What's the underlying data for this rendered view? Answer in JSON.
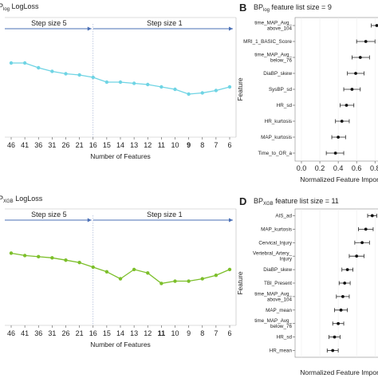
{
  "chart_data": [
    {
      "panel": "A",
      "type": "line",
      "title_main": "P",
      "title_sub": "log",
      "title_rest": " LogLoss",
      "xlabel": "Number of Features",
      "categories": [
        "46",
        "41",
        "36",
        "31",
        "26",
        "21",
        "16",
        "15",
        "14",
        "13",
        "12",
        "11",
        "10",
        "9",
        "8",
        "7",
        "6"
      ],
      "highlight": "9",
      "series": [
        {
          "values": [
            0.62,
            0.62,
            0.58,
            0.55,
            0.53,
            0.52,
            0.5,
            0.46,
            0.46,
            0.45,
            0.44,
            0.42,
            0.4,
            0.36,
            0.37,
            0.39,
            0.42
          ]
        }
      ],
      "ylim": [
        0,
        1
      ],
      "color": "#6fd4e4",
      "annotations": {
        "step5": "Step size 5",
        "step1": "Step size 1"
      }
    },
    {
      "panel": "B",
      "type": "scatter",
      "title_main": "BP",
      "title_sub": "log",
      "title_rest": " feature list size = 9",
      "xlabel": "Normalized Feature Importance",
      "ylabel": "Feature",
      "features": [
        "time_MAP_Avg_\nabove_104",
        "MRI_1_BASIC_Score",
        "time_MAP_Avg_\nbelow_76",
        "DiaBP_skew",
        "SysBP_sd",
        "HR_sd",
        "HR_kurtosis",
        "MAP_kurtosis",
        "Time_to_OR_a"
      ],
      "values": [
        0.82,
        0.7,
        0.64,
        0.59,
        0.55,
        0.49,
        0.44,
        0.4,
        0.37
      ],
      "lower": [
        0.76,
        0.6,
        0.55,
        0.5,
        0.46,
        0.42,
        0.37,
        0.33,
        0.27
      ],
      "upper": [
        0.88,
        0.8,
        0.74,
        0.68,
        0.64,
        0.57,
        0.52,
        0.48,
        0.46
      ],
      "xticks": [
        "0.0",
        "0.2",
        "0.4",
        "0.6",
        "0.8"
      ],
      "xlim": [
        0,
        0.85
      ]
    },
    {
      "panel": "C",
      "type": "line",
      "title_main": "P",
      "title_sub": "XGB",
      "title_rest": " LogLoss",
      "xlabel": "Number of Features",
      "categories": [
        "46",
        "41",
        "36",
        "31",
        "26",
        "21",
        "16",
        "15",
        "14",
        "13",
        "12",
        "11",
        "10",
        "9",
        "8",
        "7",
        "6"
      ],
      "highlight": "11",
      "series": [
        {
          "values": [
            0.62,
            0.6,
            0.59,
            0.58,
            0.56,
            0.54,
            0.5,
            0.46,
            0.4,
            0.48,
            0.45,
            0.36,
            0.38,
            0.38,
            0.4,
            0.43,
            0.48
          ]
        }
      ],
      "ylim": [
        0,
        1
      ],
      "color": "#7cbf2a",
      "annotations": {
        "step5": "Step size 5",
        "step1": "Step size 1"
      }
    },
    {
      "panel": "D",
      "type": "scatter",
      "title_main": "BP",
      "title_sub": "XGB",
      "title_rest": " feature list size = 11",
      "xlabel": "Normalized Feature Importance",
      "ylabel": "Feature",
      "features": [
        "AIS_ad",
        "MAP_kurtosis",
        "Cervical_Injury",
        "Vertebral_Artery_\nInjury",
        "DiaBP_skew",
        "TBI_Present",
        "time_MAP_Avg_\nabove_104",
        "MAP_mean",
        "time_MAP_Avg_\nbelow_76",
        "HR_sd",
        "HR_mean"
      ],
      "values": [
        0.77,
        0.7,
        0.66,
        0.6,
        0.5,
        0.47,
        0.45,
        0.43,
        0.4,
        0.36,
        0.34
      ],
      "lower": [
        0.72,
        0.62,
        0.58,
        0.52,
        0.44,
        0.41,
        0.38,
        0.36,
        0.34,
        0.3,
        0.28
      ],
      "upper": [
        0.82,
        0.78,
        0.74,
        0.68,
        0.56,
        0.53,
        0.52,
        0.5,
        0.46,
        0.42,
        0.4
      ],
      "xlim": [
        0,
        0.85
      ]
    }
  ]
}
